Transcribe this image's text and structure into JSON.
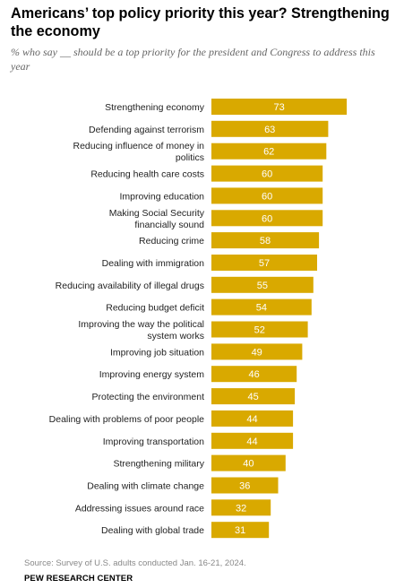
{
  "chart_data": {
    "type": "bar",
    "orientation": "horizontal",
    "title": "Americans’ top policy priority this year? Strengthening the economy",
    "subtitle": "% who say __ should be a top priority for the president and Congress to address this year",
    "categories": [
      "Strengthening economy",
      "Defending against terrorism",
      "Reducing influence of money in politics",
      "Reducing health care costs",
      "Improving education",
      "Making Social Security financially sound",
      "Reducing crime",
      "Dealing with immigration",
      "Reducing availability of illegal drugs",
      "Reducing budget deficit",
      "Improving the way the political system works",
      "Improving job situation",
      "Improving energy system",
      "Protecting the environment",
      "Dealing with problems of poor people",
      "Improving transportation",
      "Strengthening military",
      "Dealing with climate change",
      "Addressing issues around race",
      "Dealing with global trade"
    ],
    "category_lines": [
      [
        "Strengthening economy"
      ],
      [
        "Defending against terrorism"
      ],
      [
        "Reducing influence of money in",
        "politics"
      ],
      [
        "Reducing health care costs"
      ],
      [
        "Improving education"
      ],
      [
        "Making Social Security",
        "financially sound"
      ],
      [
        "Reducing crime"
      ],
      [
        "Dealing with immigration"
      ],
      [
        "Reducing availability of illegal drugs"
      ],
      [
        "Reducing budget deficit"
      ],
      [
        "Improving the way the political",
        "system works"
      ],
      [
        "Improving job situation"
      ],
      [
        "Improving energy system"
      ],
      [
        "Protecting the environment"
      ],
      [
        "Dealing with problems of poor people"
      ],
      [
        "Improving transportation"
      ],
      [
        "Strengthening military"
      ],
      [
        "Dealing with climate change"
      ],
      [
        "Addressing issues around race"
      ],
      [
        "Dealing with global trade"
      ]
    ],
    "values": [
      73,
      63,
      62,
      60,
      60,
      60,
      58,
      57,
      55,
      54,
      52,
      49,
      46,
      45,
      44,
      44,
      40,
      36,
      32,
      31
    ],
    "xlim": [
      0,
      100
    ],
    "bar_color": "#d9a900",
    "label_color": "#ffffff",
    "grid": false,
    "legend": "none"
  },
  "footer": {
    "source": "Source: Survey of U.S. adults conducted Jan. 16-21, 2024.",
    "brand": "PEW RESEARCH CENTER"
  }
}
